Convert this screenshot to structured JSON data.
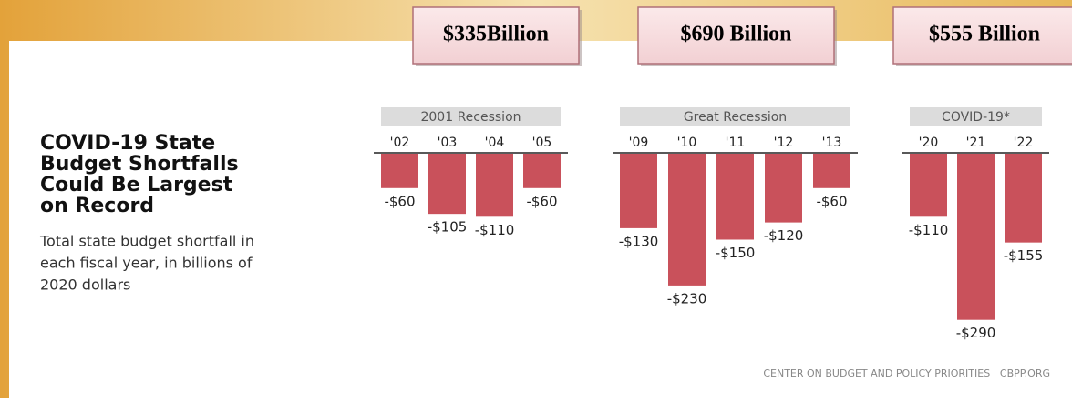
{
  "chart_data": {
    "type": "bar",
    "title": [
      "COVID-19 State",
      "Budget Shortfalls",
      "Could Be Largest",
      "on Record"
    ],
    "subtitle": [
      "Total state budget shortfall in",
      "each fiscal year, in billions of",
      "2020 dollars"
    ],
    "source": "CENTER ON BUDGET AND POLICY PRIORITIES | CBPP.ORG",
    "color": "#c9515b",
    "groups": [
      {
        "name": "2001 Recession",
        "total": "$335Billion",
        "categories": [
          "'02",
          "'03",
          "'04",
          "'05"
        ],
        "values": [
          -60,
          -105,
          -110,
          -60
        ],
        "value_labels": [
          "-$60",
          "-$105",
          "-$110",
          "-$60"
        ]
      },
      {
        "name": "Great Recession",
        "total": "$690 Billion",
        "categories": [
          "'09",
          "'10",
          "'11",
          "'12",
          "'13"
        ],
        "values": [
          -130,
          -230,
          -150,
          -120,
          -60
        ],
        "value_labels": [
          "-$130",
          "-$230",
          "-$150",
          "-$120",
          "-$60"
        ]
      },
      {
        "name": "COVID-19*",
        "total": "$555 Billion",
        "categories": [
          "'20",
          "'21",
          "'22"
        ],
        "values": [
          -110,
          -290,
          -155
        ],
        "value_labels": [
          "-$110",
          "-$290",
          "-$155"
        ]
      }
    ]
  }
}
